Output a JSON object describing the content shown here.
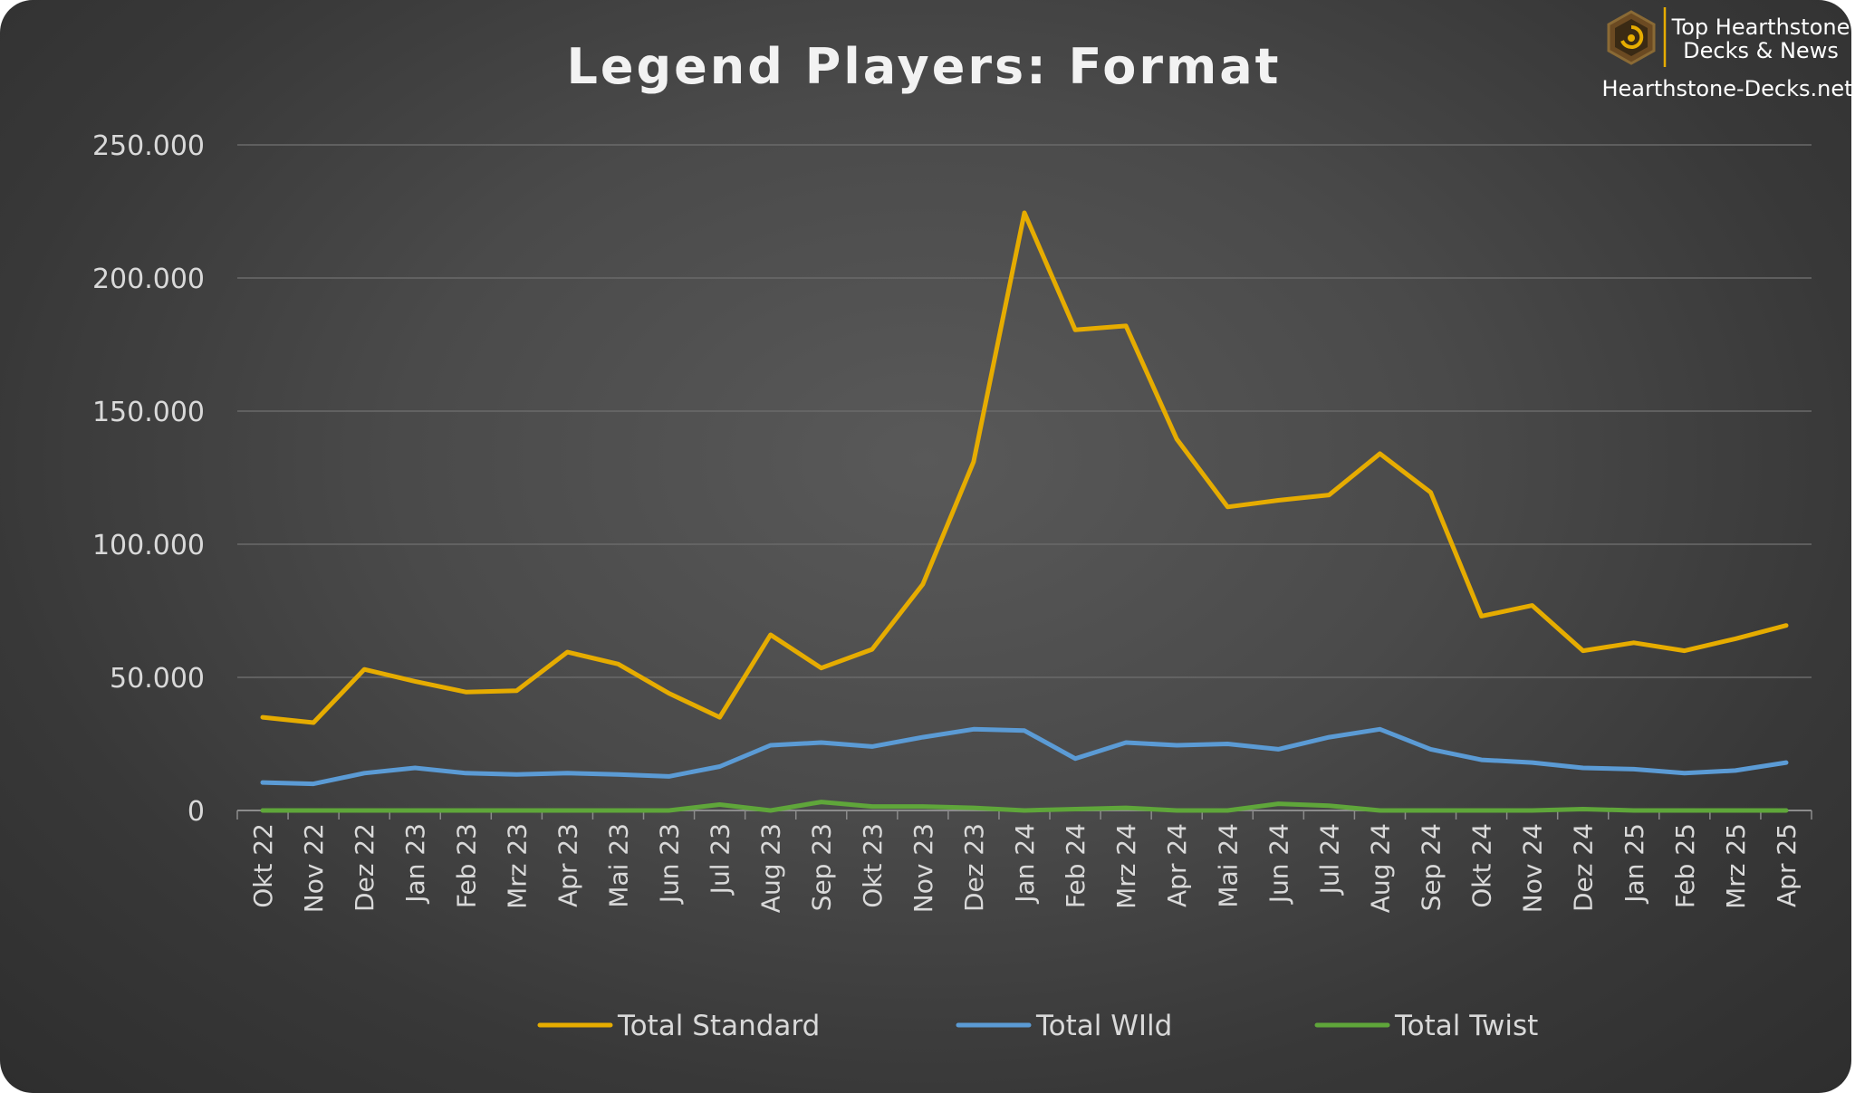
{
  "chart_data": {
    "type": "line",
    "title": "Legend Players: Format",
    "xlabel": "",
    "ylabel": "",
    "ylim": [
      0,
      250000
    ],
    "yticks": [
      "0",
      "50.000",
      "100.000",
      "150.000",
      "200.000",
      "250.000"
    ],
    "grid": true,
    "legend_position": "bottom",
    "categories": [
      "Okt 22",
      "Nov 22",
      "Dez 22",
      "Jan 23",
      "Feb 23",
      "Mrz 23",
      "Apr 23",
      "Mai 23",
      "Jun 23",
      "Jul 23",
      "Aug 23",
      "Sep 23",
      "Okt 23",
      "Nov 23",
      "Dez 23",
      "Jan 24",
      "Feb 24",
      "Mrz 24",
      "Apr 24",
      "Mai 24",
      "Jun 24",
      "Jul 24",
      "Aug 24",
      "Sep 24",
      "Okt 24",
      "Nov 24",
      "Dez 24",
      "Jan 25",
      "Feb 25",
      "Mrz 25",
      "Apr 25"
    ],
    "series": [
      {
        "name": "Total Standard",
        "color": "#e6ac00",
        "values": [
          35000,
          33000,
          53000,
          48500,
          44500,
          45000,
          59500,
          55000,
          44000,
          35000,
          66000,
          53500,
          60500,
          85000,
          131000,
          224500,
          180500,
          182000,
          139500,
          114000,
          116500,
          118500,
          134000,
          119500,
          73000,
          77000,
          60000,
          63000,
          60000,
          64500,
          69500
        ]
      },
      {
        "name": "Total WIld",
        "color": "#5b9bd5",
        "values": [
          10500,
          10000,
          14000,
          16000,
          14000,
          13500,
          14000,
          13500,
          12800,
          16500,
          24500,
          25500,
          24000,
          27500,
          30500,
          30000,
          19500,
          25500,
          24500,
          25000,
          23000,
          27500,
          30500,
          23000,
          19000,
          18000,
          16000,
          15500,
          14000,
          15000,
          18000
        ]
      },
      {
        "name": "Total Twist",
        "color": "#5fa63a",
        "values": [
          0,
          0,
          0,
          0,
          0,
          0,
          0,
          0,
          0,
          2200,
          0,
          3200,
          1500,
          1500,
          1000,
          0,
          500,
          1000,
          0,
          0,
          2500,
          1800,
          0,
          0,
          0,
          0,
          500,
          0,
          0,
          0,
          0
        ]
      }
    ]
  },
  "logo": {
    "line1": "Top Hearthstone",
    "line2": "Decks & News",
    "url": "Hearthstone-Decks.net",
    "icon": "hearthstone-logo-icon"
  }
}
